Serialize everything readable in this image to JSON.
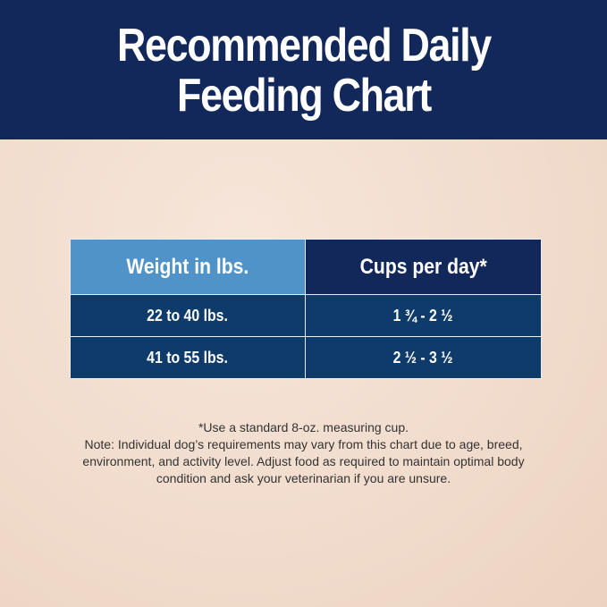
{
  "title_line1": "Recommended Daily",
  "title_line2": "Feeding Chart",
  "table": {
    "headers": [
      "Weight in lbs.",
      "Cups per day*"
    ],
    "rows": [
      [
        "22 to 40 lbs.",
        "1 ¾ - 2 ½"
      ],
      [
        "41 to 55 lbs.",
        "2 ½ - 3 ½"
      ]
    ]
  },
  "notes": {
    "line1": "*Use a standard 8-oz. measuring cup.",
    "line2": "Note: Individual dog’s requirements may vary from this chart due to age, breed,",
    "line3": "environment, and activity level. Adjust food as required to maintain optimal body",
    "line4": "condition and ask your veterinarian if you are unsure."
  },
  "colors": {
    "navy": "#13285a",
    "light_blue": "#4f93c9",
    "row_blue": "#0f3b6b",
    "background": "#f1dccd"
  }
}
